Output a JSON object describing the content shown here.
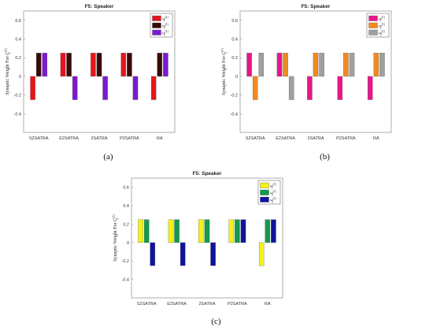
{
  "chart_data": [
    {
      "type": "bar",
      "panel_label": "(a)",
      "title": "F5: Speaker",
      "ylabel": "Synaptic Weight For C_1^(1)",
      "categories": [
        "S2SATRA",
        "E2SATRA",
        "2SATRA",
        "P2SATRA",
        "RA"
      ],
      "ylim": [
        -0.6,
        0.7
      ],
      "yticks": [
        0.6,
        0.4,
        0.2,
        0,
        -0.2,
        -0.4
      ],
      "grid": false,
      "legend_position": "top-right",
      "series": [
        {
          "legend": "w_1^(1)",
          "color": "#e8141b",
          "values": [
            -0.25,
            0.25,
            0.25,
            0.25,
            -0.25
          ]
        },
        {
          "legend": "w_2^(1)",
          "color": "#3a0a08",
          "values": [
            0.25,
            0.25,
            0.25,
            0.25,
            0.25
          ]
        },
        {
          "legend": "w_3^(1)",
          "color": "#7a1ad0",
          "values": [
            0.25,
            -0.25,
            -0.25,
            -0.25,
            0.25
          ]
        }
      ]
    },
    {
      "type": "bar",
      "panel_label": "(b)",
      "title": "F5: Speaker",
      "ylabel": "Synaptic Weight For C_2^(1)",
      "categories": [
        "S2SATRA",
        "E2SATRA",
        "2SATRA",
        "P2SATRA",
        "RA"
      ],
      "ylim": [
        -0.6,
        0.7
      ],
      "yticks": [
        0.6,
        0.4,
        0.2,
        0,
        -0.2,
        -0.4
      ],
      "grid": false,
      "legend_position": "top-right",
      "series": [
        {
          "legend": "w_1^(1)",
          "color": "#e8168a",
          "values": [
            0.25,
            0.25,
            -0.25,
            -0.25,
            -0.25
          ]
        },
        {
          "legend": "w_2^(1)",
          "color": "#f08a1e",
          "values": [
            -0.25,
            0.25,
            0.25,
            0.25,
            0.25
          ]
        },
        {
          "legend": "w_3^(1)",
          "color": "#a0a0a0",
          "values": [
            0.25,
            -0.25,
            0.25,
            0.25,
            0.25
          ]
        }
      ]
    },
    {
      "type": "bar",
      "panel_label": "(c)",
      "title": "F5: Speaker",
      "ylabel": "Synaptic Weight For C_3^(1)",
      "categories": [
        "S2SATRA",
        "E2SATRA",
        "2SATRA",
        "P2SATRA",
        "RA"
      ],
      "ylim": [
        -0.6,
        0.7
      ],
      "yticks": [
        0.6,
        0.4,
        0.2,
        0,
        -0.2,
        -0.4
      ],
      "grid": false,
      "legend_position": "top-right",
      "series": [
        {
          "legend": "w_1^(1)",
          "color": "#f2f21a",
          "values": [
            0.25,
            0.25,
            0.25,
            0.25,
            -0.25
          ]
        },
        {
          "legend": "w_2^(1)",
          "color": "#129a4a",
          "values": [
            0.25,
            0.25,
            0.25,
            0.25,
            0.25
          ]
        },
        {
          "legend": "w_3^(1)",
          "color": "#10139c",
          "values": [
            -0.25,
            -0.25,
            -0.25,
            0.25,
            0.25
          ]
        }
      ]
    }
  ]
}
